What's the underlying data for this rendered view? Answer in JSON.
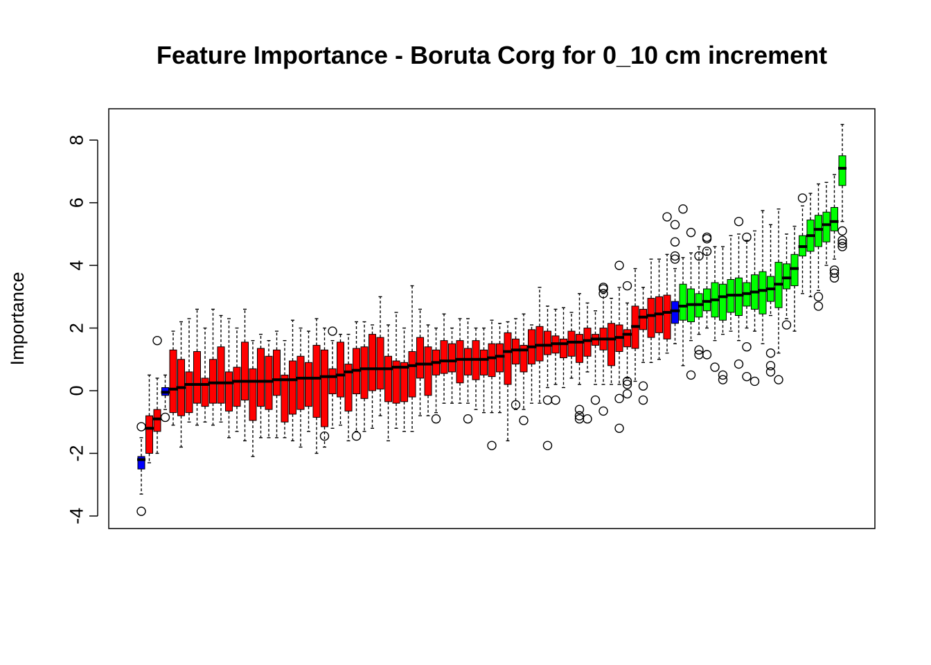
{
  "chart_data": {
    "type": "box",
    "title": "Feature Importance - Boruta Corg for 0_10 cm increment",
    "xlabel": "",
    "ylabel": "Importance",
    "ylim": [
      -4.4,
      9
    ],
    "yticks": [
      -4,
      -2,
      0,
      2,
      4,
      6,
      8
    ],
    "grid": false,
    "legend": "none",
    "colors": {
      "shadow": "#0000FF",
      "rejected": "#FF0000",
      "confirmed": "#00FF00",
      "median": "#000000"
    },
    "boxes": [
      {
        "status": "shadow",
        "min": -3.3,
        "q1": -2.5,
        "median": -2.2,
        "q3": -2.1,
        "max": -1.5,
        "outliers": [
          -3.85,
          -1.15
        ]
      },
      {
        "status": "rejected",
        "min": -2.3,
        "q1": -2.0,
        "median": -1.2,
        "q3": -0.8,
        "max": 0.5
      },
      {
        "status": "rejected",
        "min": -2.0,
        "q1": -1.3,
        "median": -0.9,
        "q3": -0.6,
        "max": 0.4,
        "outliers": [
          1.6
        ]
      },
      {
        "status": "shadow",
        "min": -0.6,
        "q1": -0.15,
        "median": -0.05,
        "q3": 0.1,
        "max": 0.5,
        "outliers": [
          -0.85
        ]
      },
      {
        "status": "rejected",
        "min": -1.1,
        "q1": -0.7,
        "median": 0.05,
        "q3": 1.3,
        "max": 1.9
      },
      {
        "status": "rejected",
        "min": -1.8,
        "q1": -0.8,
        "median": 0.1,
        "q3": 1.0,
        "max": 2.2
      },
      {
        "status": "rejected",
        "min": -1.0,
        "q1": -0.7,
        "median": 0.2,
        "q3": 0.6,
        "max": 2.3
      },
      {
        "status": "rejected",
        "min": -1.1,
        "q1": -0.4,
        "median": 0.2,
        "q3": 1.25,
        "max": 2.6
      },
      {
        "status": "rejected",
        "min": -1.0,
        "q1": -0.5,
        "median": 0.2,
        "q3": 0.4,
        "max": 2.0
      },
      {
        "status": "rejected",
        "min": -1.1,
        "q1": -0.4,
        "median": 0.25,
        "q3": 1.0,
        "max": 2.6
      },
      {
        "status": "rejected",
        "min": -1.0,
        "q1": -0.4,
        "median": 0.25,
        "q3": 1.4,
        "max": 2.4
      },
      {
        "status": "rejected",
        "min": -1.5,
        "q1": -0.65,
        "median": 0.25,
        "q3": 0.6,
        "max": 2.3
      },
      {
        "status": "rejected",
        "min": -1.3,
        "q1": -0.5,
        "median": 0.3,
        "q3": 0.75,
        "max": 2.0
      },
      {
        "status": "rejected",
        "min": -1.6,
        "q1": -0.3,
        "median": 0.3,
        "q3": 1.55,
        "max": 2.6
      },
      {
        "status": "rejected",
        "min": -2.1,
        "q1": -0.95,
        "median": 0.3,
        "q3": 0.7,
        "max": 1.6
      },
      {
        "status": "rejected",
        "min": -1.5,
        "q1": -0.5,
        "median": 0.3,
        "q3": 1.35,
        "max": 1.8
      },
      {
        "status": "rejected",
        "min": -1.5,
        "q1": -0.6,
        "median": 0.3,
        "q3": 1.1,
        "max": 1.6
      },
      {
        "status": "rejected",
        "min": -1.5,
        "q1": -0.15,
        "median": 0.35,
        "q3": 1.3,
        "max": 1.9
      },
      {
        "status": "rejected",
        "min": -1.5,
        "q1": -1.0,
        "median": 0.35,
        "q3": 0.5,
        "max": 1.6
      },
      {
        "status": "rejected",
        "min": -1.6,
        "q1": -0.75,
        "median": 0.35,
        "q3": 0.95,
        "max": 2.25
      },
      {
        "status": "rejected",
        "min": -1.8,
        "q1": -0.6,
        "median": 0.4,
        "q3": 1.1,
        "max": 2.0
      },
      {
        "status": "rejected",
        "min": -1.3,
        "q1": -0.5,
        "median": 0.4,
        "q3": 0.9,
        "max": 1.9
      },
      {
        "status": "rejected",
        "min": -2.0,
        "q1": -0.85,
        "median": 0.4,
        "q3": 1.45,
        "max": 2.3
      },
      {
        "status": "rejected",
        "min": -1.8,
        "q1": -1.15,
        "median": 0.45,
        "q3": 1.3,
        "max": 2.0,
        "outliers": [
          -1.45
        ]
      },
      {
        "status": "rejected",
        "min": -1.2,
        "q1": -0.1,
        "median": 0.45,
        "q3": 0.7,
        "max": 1.6,
        "outliers": [
          1.9
        ]
      },
      {
        "status": "rejected",
        "min": -1.1,
        "q1": -0.2,
        "median": 0.5,
        "q3": 1.55,
        "max": 1.8
      },
      {
        "status": "rejected",
        "min": -1.6,
        "q1": -0.65,
        "median": 0.6,
        "q3": 0.85,
        "max": 1.8
      },
      {
        "status": "rejected",
        "min": -1.3,
        "q1": -0.1,
        "median": 0.65,
        "q3": 1.35,
        "max": 2.2,
        "outliers": [
          -1.45
        ]
      },
      {
        "status": "rejected",
        "min": -1.3,
        "q1": -0.25,
        "median": 0.7,
        "q3": 1.4,
        "max": 2.2
      },
      {
        "status": "rejected",
        "min": -1.2,
        "q1": 0.0,
        "median": 0.7,
        "q3": 1.8,
        "max": 2.1
      },
      {
        "status": "rejected",
        "min": -0.8,
        "q1": 0.05,
        "median": 0.7,
        "q3": 1.7,
        "max": 3.0
      },
      {
        "status": "rejected",
        "min": -1.6,
        "q1": -0.35,
        "median": 0.7,
        "q3": 1.1,
        "max": 2.1
      },
      {
        "status": "rejected",
        "min": -1.2,
        "q1": -0.4,
        "median": 0.75,
        "q3": 0.95,
        "max": 2.5
      },
      {
        "status": "rejected",
        "min": -1.3,
        "q1": -0.35,
        "median": 0.75,
        "q3": 0.9,
        "max": 2.0
      },
      {
        "status": "rejected",
        "min": -1.3,
        "q1": -0.2,
        "median": 0.8,
        "q3": 1.25,
        "max": 3.35
      },
      {
        "status": "rejected",
        "min": -0.8,
        "q1": 0.4,
        "median": 0.85,
        "q3": 1.7,
        "max": 2.6
      },
      {
        "status": "rejected",
        "min": -0.8,
        "q1": -0.15,
        "median": 0.85,
        "q3": 1.4,
        "max": 2.1
      },
      {
        "status": "rejected",
        "min": -0.7,
        "q1": 0.5,
        "median": 0.9,
        "q3": 1.3,
        "max": 2.0,
        "outliers": [
          -0.9
        ]
      },
      {
        "status": "rejected",
        "min": -0.4,
        "q1": 0.55,
        "median": 0.95,
        "q3": 1.6,
        "max": 2.45
      },
      {
        "status": "rejected",
        "min": -0.4,
        "q1": 0.6,
        "median": 0.95,
        "q3": 1.5,
        "max": 2.0
      },
      {
        "status": "rejected",
        "min": -0.4,
        "q1": 0.25,
        "median": 1.0,
        "q3": 1.6,
        "max": 2.3
      },
      {
        "status": "rejected",
        "min": -0.4,
        "q1": 0.5,
        "median": 1.0,
        "q3": 1.35,
        "max": 2.3,
        "outliers": [
          -0.9
        ]
      },
      {
        "status": "rejected",
        "min": -0.6,
        "q1": 0.35,
        "median": 1.0,
        "q3": 1.6,
        "max": 2.0
      },
      {
        "status": "rejected",
        "min": -0.7,
        "q1": 0.5,
        "median": 1.0,
        "q3": 1.3,
        "max": 2.0
      },
      {
        "status": "rejected",
        "min": -0.7,
        "q1": 0.45,
        "median": 1.05,
        "q3": 1.5,
        "max": 2.25,
        "outliers": [
          -1.75
        ]
      },
      {
        "status": "rejected",
        "min": -0.7,
        "q1": 0.6,
        "median": 1.1,
        "q3": 1.5,
        "max": 2.15
      },
      {
        "status": "rejected",
        "min": -1.6,
        "q1": 0.2,
        "median": 1.25,
        "q3": 1.85,
        "max": 2.2
      },
      {
        "status": "rejected",
        "min": -0.6,
        "q1": 0.85,
        "median": 1.3,
        "q3": 1.65,
        "max": 2.3,
        "outliers": [
          -0.45
        ]
      },
      {
        "status": "rejected",
        "min": -0.6,
        "q1": 0.6,
        "median": 1.3,
        "q3": 1.45,
        "max": 2.45,
        "outliers": [
          -0.95
        ]
      },
      {
        "status": "rejected",
        "min": -0.4,
        "q1": 0.85,
        "median": 1.4,
        "q3": 1.95,
        "max": 2.1
      },
      {
        "status": "rejected",
        "min": -0.4,
        "q1": 0.95,
        "median": 1.45,
        "q3": 2.05,
        "max": 3.3
      },
      {
        "status": "rejected",
        "min": 0.1,
        "q1": 1.15,
        "median": 1.45,
        "q3": 1.9,
        "max": 2.7,
        "outliers": [
          -1.75,
          -0.3
        ]
      },
      {
        "status": "rejected",
        "min": 0.2,
        "q1": 1.2,
        "median": 1.5,
        "q3": 1.75,
        "max": 2.6,
        "outliers": [
          -0.3
        ]
      },
      {
        "status": "rejected",
        "min": 0.1,
        "q1": 1.05,
        "median": 1.5,
        "q3": 1.65,
        "max": 2.65
      },
      {
        "status": "rejected",
        "min": 0.4,
        "q1": 1.1,
        "median": 1.55,
        "q3": 1.9,
        "max": 2.5
      },
      {
        "status": "rejected",
        "min": 0.2,
        "q1": 0.9,
        "median": 1.55,
        "q3": 1.8,
        "max": 3.1,
        "outliers": [
          -0.9,
          -0.8,
          -0.6
        ]
      },
      {
        "status": "rejected",
        "min": 0.6,
        "q1": 1.1,
        "median": 1.6,
        "q3": 2.0,
        "max": 2.8,
        "outliers": [
          -0.9
        ]
      },
      {
        "status": "rejected",
        "min": 0.2,
        "q1": 1.45,
        "median": 1.65,
        "q3": 1.8,
        "max": 2.55,
        "outliers": [
          -0.3
        ]
      },
      {
        "status": "rejected",
        "min": 0.2,
        "q1": 1.3,
        "median": 1.65,
        "q3": 2.0,
        "max": 3.1,
        "outliers": [
          3.1,
          3.25,
          3.3,
          -0.65
        ]
      },
      {
        "status": "rejected",
        "min": 0.2,
        "q1": 0.8,
        "median": 1.65,
        "q3": 2.15,
        "max": 2.95
      },
      {
        "status": "rejected",
        "min": 0.2,
        "q1": 1.25,
        "median": 1.7,
        "q3": 2.1,
        "max": 3.3,
        "outliers": [
          4.0,
          -0.25,
          -1.2
        ]
      },
      {
        "status": "rejected",
        "min": 0.4,
        "q1": 1.4,
        "median": 1.8,
        "q3": 1.95,
        "max": 2.8,
        "outliers": [
          3.35,
          0.2,
          0.3,
          -0.1
        ]
      },
      {
        "status": "rejected",
        "min": 0.3,
        "q1": 1.35,
        "median": 2.05,
        "q3": 2.7,
        "max": 3.9
      },
      {
        "status": "rejected",
        "min": 0.9,
        "q1": 1.95,
        "median": 2.35,
        "q3": 2.6,
        "max": 3.3,
        "outliers": [
          0.15,
          -0.3
        ]
      },
      {
        "status": "rejected",
        "min": 0.9,
        "q1": 1.7,
        "median": 2.4,
        "q3": 2.95,
        "max": 4.2
      },
      {
        "status": "rejected",
        "min": 1.0,
        "q1": 1.85,
        "median": 2.45,
        "q3": 3.0,
        "max": 4.2
      },
      {
        "status": "rejected",
        "min": 1.2,
        "q1": 1.65,
        "median": 2.5,
        "q3": 3.05,
        "max": 4.35,
        "outliers": [
          5.55
        ]
      },
      {
        "status": "shadow",
        "min": 1.5,
        "q1": 2.15,
        "median": 2.55,
        "q3": 2.85,
        "max": 3.9,
        "outliers": [
          5.3,
          4.75,
          4.3,
          4.2
        ]
      },
      {
        "status": "confirmed",
        "min": 0.8,
        "q1": 2.25,
        "median": 2.7,
        "q3": 3.4,
        "max": 4.25,
        "outliers": [
          5.8
        ]
      },
      {
        "status": "confirmed",
        "min": 1.6,
        "q1": 2.2,
        "median": 2.75,
        "q3": 3.25,
        "max": 4.4,
        "outliers": [
          5.05,
          0.5
        ]
      },
      {
        "status": "confirmed",
        "min": 1.8,
        "q1": 2.35,
        "median": 2.75,
        "q3": 3.1,
        "max": 4.6,
        "outliers": [
          4.3,
          1.3,
          1.15
        ]
      },
      {
        "status": "confirmed",
        "min": 2.0,
        "q1": 2.55,
        "median": 2.85,
        "q3": 3.25,
        "max": 4.5,
        "outliers": [
          4.45,
          4.9,
          4.85,
          1.15
        ]
      },
      {
        "status": "confirmed",
        "min": 1.6,
        "q1": 2.35,
        "median": 2.9,
        "q3": 3.45,
        "max": 4.6,
        "outliers": [
          0.75
        ]
      },
      {
        "status": "confirmed",
        "min": 1.8,
        "q1": 2.25,
        "median": 3.0,
        "q3": 3.4,
        "max": 4.6,
        "outliers": [
          0.5,
          0.35
        ]
      },
      {
        "status": "confirmed",
        "min": 1.9,
        "q1": 2.5,
        "median": 3.05,
        "q3": 3.55,
        "max": 4.95
      },
      {
        "status": "confirmed",
        "min": 1.6,
        "q1": 2.4,
        "median": 3.05,
        "q3": 3.6,
        "max": 5.0,
        "outliers": [
          5.4,
          0.85
        ]
      },
      {
        "status": "confirmed",
        "min": 2.0,
        "q1": 2.7,
        "median": 3.1,
        "q3": 3.45,
        "max": 4.8,
        "outliers": [
          4.9,
          1.4,
          0.45
        ]
      },
      {
        "status": "confirmed",
        "min": 1.9,
        "q1": 2.6,
        "median": 3.15,
        "q3": 3.7,
        "max": 5.1,
        "outliers": [
          0.3
        ]
      },
      {
        "status": "confirmed",
        "min": 1.5,
        "q1": 2.45,
        "median": 3.2,
        "q3": 3.8,
        "max": 5.75
      },
      {
        "status": "confirmed",
        "min": 2.4,
        "q1": 2.85,
        "median": 3.25,
        "q3": 3.65,
        "max": 5.3,
        "outliers": [
          1.2,
          0.8,
          0.6
        ]
      },
      {
        "status": "confirmed",
        "min": 1.2,
        "q1": 2.65,
        "median": 3.4,
        "q3": 4.1,
        "max": 5.8,
        "outliers": [
          0.35
        ]
      },
      {
        "status": "confirmed",
        "min": 2.3,
        "q1": 3.25,
        "median": 3.6,
        "q3": 4.05,
        "max": 5.0,
        "outliers": [
          2.1
        ]
      },
      {
        "status": "confirmed",
        "min": 1.9,
        "q1": 3.35,
        "median": 3.9,
        "q3": 4.35,
        "max": 5.25
      },
      {
        "status": "confirmed",
        "min": 3.1,
        "q1": 4.3,
        "median": 4.6,
        "q3": 4.95,
        "max": 5.9,
        "outliers": [
          6.15
        ]
      },
      {
        "status": "confirmed",
        "min": 3.0,
        "q1": 4.45,
        "median": 4.95,
        "q3": 5.45,
        "max": 6.3
      },
      {
        "status": "confirmed",
        "min": 3.2,
        "q1": 4.6,
        "median": 5.15,
        "q3": 5.6,
        "max": 6.6,
        "outliers": [
          3.0,
          2.7
        ]
      },
      {
        "status": "confirmed",
        "min": 4.0,
        "q1": 4.75,
        "median": 5.3,
        "q3": 5.7,
        "max": 6.65
      },
      {
        "status": "confirmed",
        "min": 4.2,
        "q1": 5.1,
        "median": 5.4,
        "q3": 5.85,
        "max": 6.9,
        "outliers": [
          3.85,
          3.75,
          3.6
        ]
      },
      {
        "status": "confirmed",
        "min": 5.4,
        "q1": 6.55,
        "median": 7.1,
        "q3": 7.5,
        "max": 8.5,
        "outliers": [
          5.1,
          4.8,
          4.7,
          4.6
        ]
      }
    ]
  }
}
